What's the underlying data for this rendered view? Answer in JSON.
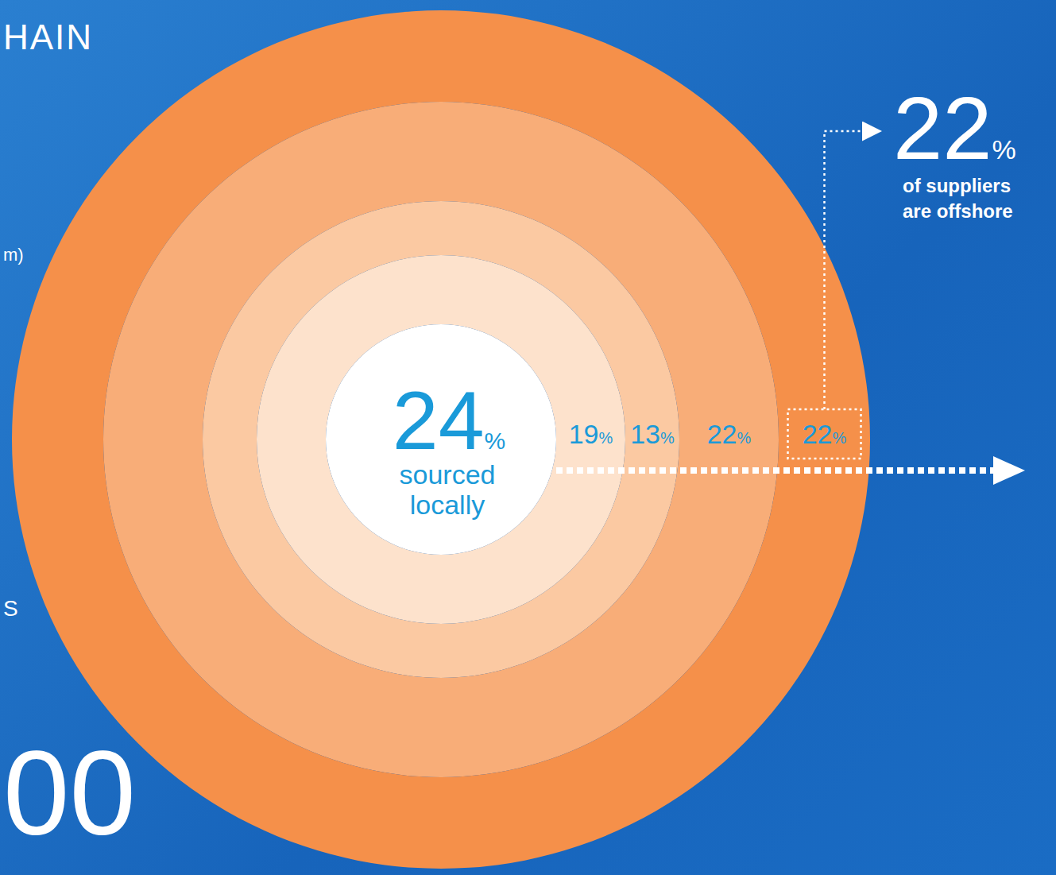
{
  "chart_data": {
    "type": "rings",
    "values": [
      24,
      19,
      13,
      22,
      22
    ],
    "colors": [
      "#ffffff",
      "#fde2cc",
      "#fbc9a2",
      "#f8ad78",
      "#f5904a"
    ],
    "unit": "%",
    "center_label": "sourced locally",
    "callout": {
      "value": 22,
      "text": "of suppliers are offshore"
    },
    "fragments": [
      "HAIN",
      "m)",
      "S",
      "00"
    ]
  }
}
